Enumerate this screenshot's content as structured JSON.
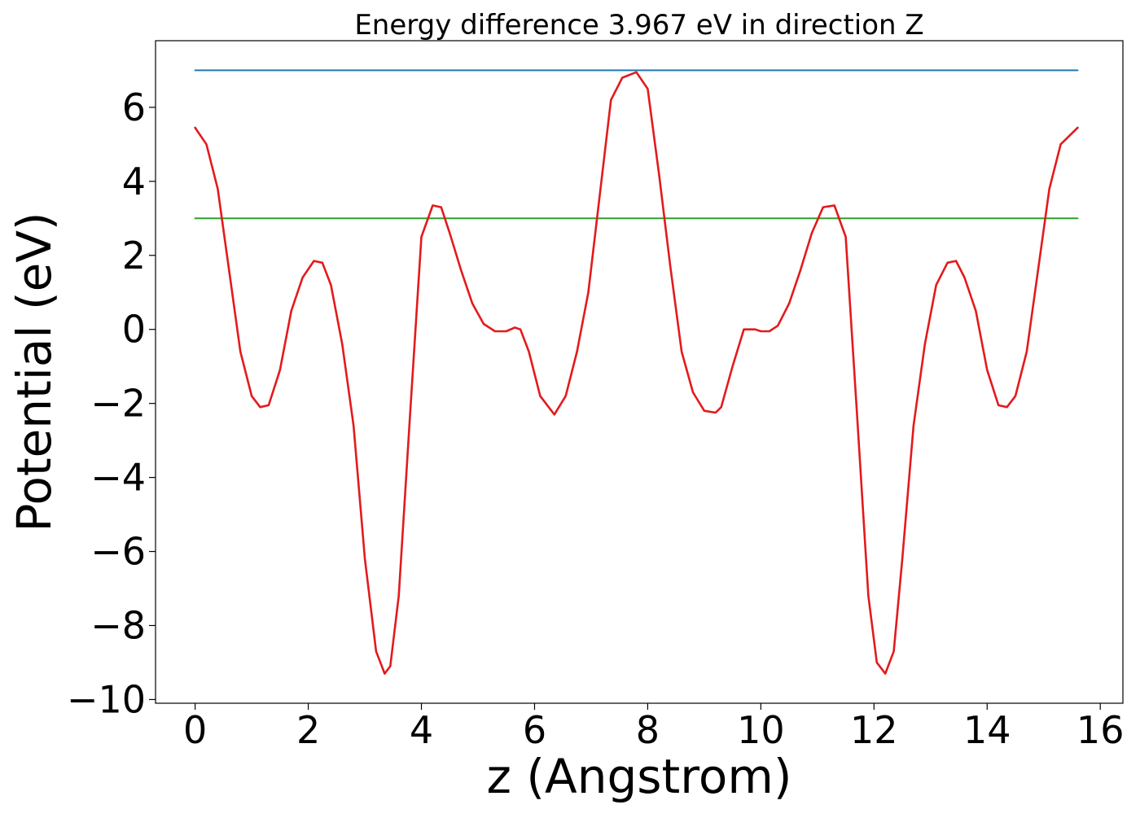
{
  "chart_data": {
    "type": "line",
    "title": "Energy difference 3.967 eV in direction Z",
    "xlabel": "z (Angstrom)",
    "ylabel": "Potential (eV)",
    "xlim": [
      -0.7,
      16.4
    ],
    "ylim": [
      -10.1,
      7.8
    ],
    "x_ticks": [
      0,
      2,
      4,
      6,
      8,
      10,
      12,
      14,
      16
    ],
    "x_tick_labels": [
      "0",
      "2",
      "4",
      "6",
      "8",
      "10",
      "12",
      "14",
      "16"
    ],
    "y_ticks": [
      -10,
      -8,
      -6,
      -4,
      -2,
      0,
      2,
      4,
      6
    ],
    "y_tick_labels": [
      "−10",
      "−8",
      "−6",
      "−4",
      "−2",
      "0",
      "2",
      "4",
      "6"
    ],
    "grid": false,
    "legend": "none",
    "series": [
      {
        "color": "#1f77b4",
        "x": [
          0,
          15.6
        ],
        "y": [
          7.0,
          7.0
        ]
      },
      {
        "color": "#2ca02c",
        "x": [
          0,
          15.6
        ],
        "y": [
          3.0,
          3.0
        ]
      },
      {
        "color": "#e31a1c",
        "x": [
          0.0,
          0.2,
          0.4,
          0.6,
          0.8,
          1.0,
          1.15,
          1.3,
          1.5,
          1.7,
          1.9,
          2.1,
          2.25,
          2.4,
          2.6,
          2.8,
          3.0,
          3.2,
          3.35,
          3.45,
          3.6,
          3.8,
          4.0,
          4.2,
          4.35,
          4.5,
          4.7,
          4.9,
          5.1,
          5.3,
          5.5,
          5.65,
          5.75,
          5.9,
          6.1,
          6.35,
          6.55,
          6.75,
          6.95,
          7.15,
          7.35,
          7.55,
          7.8,
          8.0,
          8.2,
          8.4,
          8.6,
          8.8,
          9.0,
          9.2,
          9.3,
          9.5,
          9.7,
          9.9,
          10.0,
          10.15,
          10.3,
          10.5,
          10.7,
          10.9,
          11.1,
          11.3,
          11.5,
          11.7,
          11.9,
          12.05,
          12.2,
          12.35,
          12.5,
          12.7,
          12.9,
          13.1,
          13.3,
          13.45,
          13.6,
          13.8,
          14.0,
          14.2,
          14.35,
          14.5,
          14.7,
          14.9,
          15.1,
          15.3,
          15.6
        ],
        "y": [
          5.45,
          5.0,
          3.8,
          1.6,
          -0.6,
          -1.8,
          -2.1,
          -2.05,
          -1.1,
          0.5,
          1.4,
          1.85,
          1.8,
          1.2,
          -0.4,
          -2.6,
          -6.2,
          -8.7,
          -9.3,
          -9.1,
          -7.2,
          -2.3,
          2.5,
          3.35,
          3.3,
          2.6,
          1.6,
          0.7,
          0.15,
          -0.05,
          -0.05,
          0.05,
          0.0,
          -0.6,
          -1.8,
          -2.3,
          -1.8,
          -0.6,
          1.0,
          3.6,
          6.2,
          6.8,
          6.95,
          6.5,
          4.2,
          1.7,
          -0.6,
          -1.7,
          -2.2,
          -2.25,
          -2.1,
          -1.0,
          0.0,
          0.0,
          -0.05,
          -0.05,
          0.1,
          0.7,
          1.6,
          2.6,
          3.3,
          3.35,
          2.5,
          -2.3,
          -7.2,
          -9.0,
          -9.3,
          -8.7,
          -6.2,
          -2.6,
          -0.4,
          1.2,
          1.8,
          1.85,
          1.4,
          0.5,
          -1.1,
          -2.05,
          -2.1,
          -1.8,
          -0.6,
          1.6,
          3.8,
          5.0,
          5.45
        ]
      }
    ]
  }
}
